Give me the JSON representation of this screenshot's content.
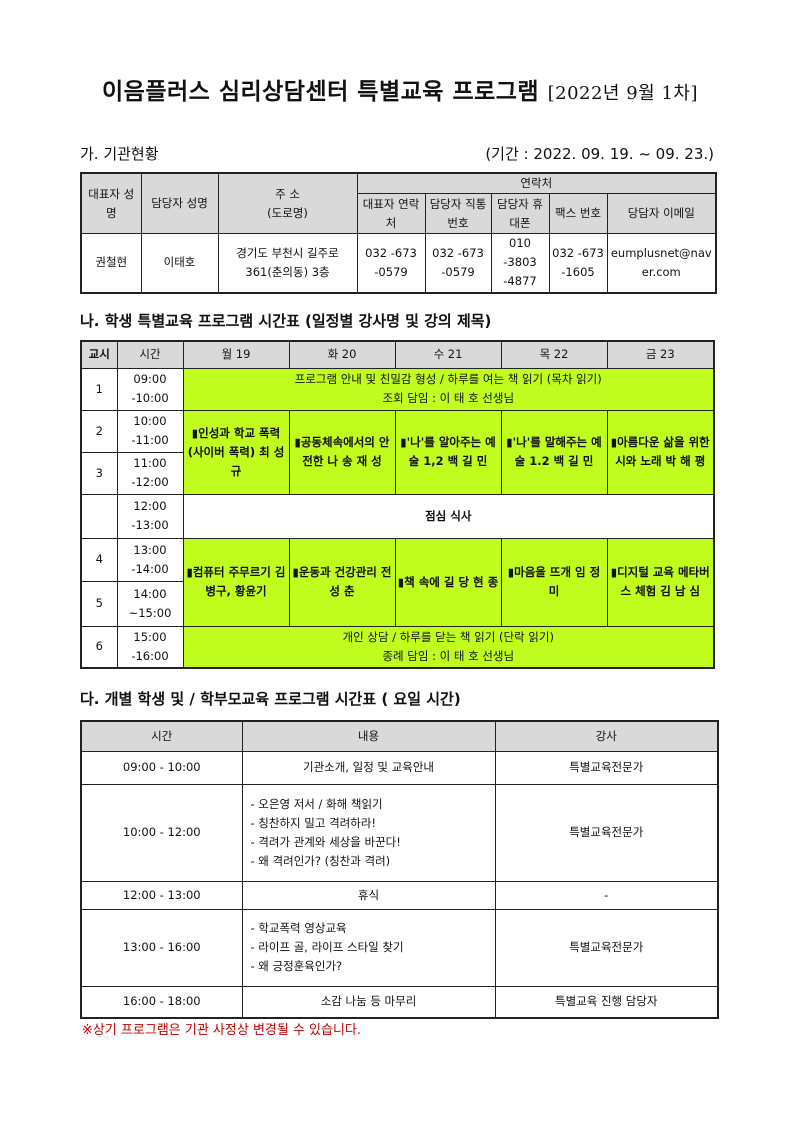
{
  "title": {
    "main": "이음플러스 심리상담센터 특별교육 프로그램",
    "sub": "[2022년 9월 1차]"
  },
  "section_a": {
    "heading": "가. 기관현황",
    "period": "(기간 : 2022. 09. 19. ~ 09. 23.)",
    "headers": {
      "rep": "대표자 성명",
      "mgr": "담당자 성명",
      "addr_1": "주 소",
      "addr_2": "(도로명)",
      "contact": "연락처",
      "rep_tel": "대표자 연락처",
      "mgr_tel": "담당자 직통번호",
      "mgr_mobile": "담당자 휴대폰",
      "fax": "팩스 번호",
      "email": "당담자 이메일"
    },
    "row": {
      "rep": "권철현",
      "mgr": "이태호",
      "addr": "경기도 부천시 길주로 361(춘의동) 3층",
      "rep_tel": "032 -673 -0579",
      "mgr_tel": "032 -673 -0579",
      "mgr_mobile": "010 -3803 -4877",
      "fax": "032 -673 -1605",
      "email": "eumplusnet@naver.com"
    }
  },
  "section_b": {
    "heading": "나. 학생 특별교육 프로그램 시간표 (일정별 강사명 및 강의 제목)",
    "headers": [
      "교시",
      "시간",
      "월 19",
      "화 20",
      "수 21",
      "목 22",
      "금 23"
    ],
    "periods": [
      {
        "no": "1",
        "time": "09:00 -10:00"
      },
      {
        "no": "2",
        "time": "10:00 -11:00"
      },
      {
        "no": "3",
        "time": "11:00 -12:00"
      },
      {
        "no": "",
        "time": "12:00 -13:00"
      },
      {
        "no": "4",
        "time": "13:00 -14:00"
      },
      {
        "no": "5",
        "time": "14:00 ~15:00"
      },
      {
        "no": "6",
        "time": "15:00 -16:00"
      }
    ],
    "morning": {
      "line1": "프로그램 안내 및 친밀감 형성 / 하루를 여는 책 읽기 (목차 읽기)",
      "line2": "조회 담임 : 이 태 호 선생님"
    },
    "block_am": [
      "▮인성과 학교 폭력 (사이버 폭력) 최 성 규",
      "▮공동체속에서의 안전한 나 송 재 성",
      "▮'나'를 알아주는 예술 1,2 백 길 민",
      "▮'나'를 말해주는 예술 1.2 백 길 민",
      "▮아름다운 삶을 위한 시와 노래 박 해 평"
    ],
    "lunch": "점심 식사",
    "block_pm": [
      "▮컴퓨터 주무르기 김병구, 황윤기",
      "▮운동과 건강관리 전 성 춘",
      "▮책 속에 길 당 현 종",
      "▮마음을 뜨개 임 정 미",
      "▮디지털 교육 메타버스 체험 김 남 심"
    ],
    "closing": {
      "line1": "개인 상담 / 하루를 닫는 책 읽기 (단락 읽기)",
      "line2": "종례 담임 : 이 태 호 선생님"
    }
  },
  "section_c": {
    "heading": "다. 개별 학생 및 / 학부모교육 프로그램 시간표 ( 요일 시간)",
    "headers": [
      "시간",
      "내용",
      "강사"
    ],
    "rows": [
      {
        "time": "09:00 - 10:00",
        "content": [
          "기관소개, 일정 및 교육안내"
        ],
        "teacher": "특별교육전문가"
      },
      {
        "time": "10:00 - 12:00",
        "content": [
          "- 오은영 저서 / 화해 책읽기",
          "- 칭찬하지 밀고 격려하라!",
          "- 격려가 관계와 세상을 바꾼다!",
          "- 왜 격려인가? (칭찬과 격려)"
        ],
        "teacher": "특별교육전문가"
      },
      {
        "time": "12:00 - 13:00",
        "content": [
          "휴식"
        ],
        "teacher": "-"
      },
      {
        "time": "13:00 - 16:00",
        "content": [
          "- 학교폭력 영상교육",
          "- 라이프 골, 라이프 스타일 찾기",
          "- 왜 긍정훈육인가?"
        ],
        "teacher": "특별교육전문가"
      },
      {
        "time": "16:00 - 18:00",
        "content": [
          "소감 나눔 등 마무리"
        ],
        "teacher": "특별교육 진행 담당자"
      }
    ]
  },
  "note": "※상기 프로그램은 기관 사정상 변경될 수 있습니다.",
  "colors": {
    "green": "#c1fc1f",
    "header_gray": "#d9d9d9",
    "note_red": "#c00000"
  }
}
